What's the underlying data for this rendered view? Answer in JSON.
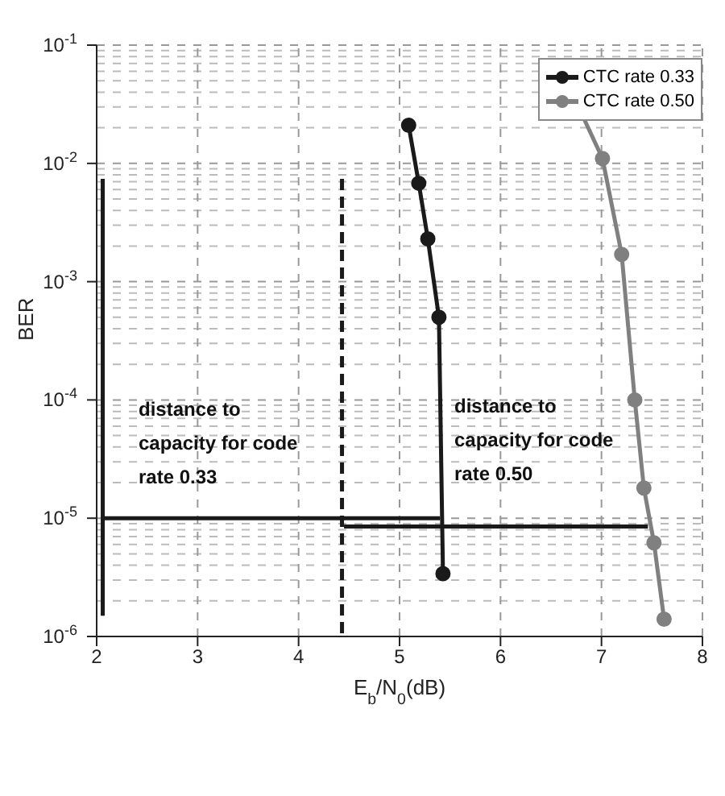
{
  "chart_data": {
    "type": "line",
    "xlabel": "E$_{b}$/N$_{0}$(dB)",
    "ylabel": "BER",
    "log": "y",
    "grid": true,
    "legend": "top right",
    "marker": "circle",
    "line_style": "solid",
    "xlim": [
      2,
      8
    ],
    "xticks": [
      2,
      3,
      4,
      5,
      6,
      7,
      8
    ],
    "ylim": [
      1e-06,
      0.1
    ],
    "yticks": [
      {
        "value": 0.1,
        "label": "10$^{-1}$"
      },
      {
        "value": 0.01,
        "label": "10$^{-2}$"
      },
      {
        "value": 0.001,
        "label": "10$^{-3}$"
      },
      {
        "value": 0.0001,
        "label": "10$^{-4}$"
      },
      {
        "value": 1e-05,
        "label": "10$^{-5}$"
      },
      {
        "value": 1e-06,
        "label": "10$^{-6}$"
      }
    ],
    "series": [
      {
        "name": "CTC rate 0.33",
        "color": "#1a1a1a",
        "x": [
          5.09,
          5.19,
          5.28,
          5.39,
          5.43
        ],
        "values": [
          0.021,
          0.0068,
          0.0023,
          0.0005,
          3.4e-06
        ]
      },
      {
        "name": "CTC rate 0.50",
        "color": "#808080",
        "x": [
          6.75,
          7.01,
          7.2,
          7.33,
          7.42,
          7.52,
          7.62
        ],
        "values": [
          0.033,
          0.011,
          0.0017,
          0.0001,
          1.8e-05,
          6.2e-06,
          1.4e-06
        ]
      },
      {
        "type": "line",
        "color": "#1a1a1a",
        "marker": "none",
        "x": [
          2.06,
          2.06
        ],
        "values": [
          0.0074,
          1.5e-06
        ]
      },
      {
        "type": "line",
        "color": "#1a1a1a",
        "marker": "none",
        "x": [
          2.06,
          5.4
        ],
        "values": [
          1e-05,
          1e-05
        ]
      },
      {
        "type": "line",
        "color": "#1a1a1a",
        "marker": "none",
        "line_style": "dashed",
        "x": [
          4.43,
          4.43
        ],
        "values": [
          0.0074,
          1e-06
        ]
      },
      {
        "type": "line",
        "color": "#1a1a1a",
        "marker": "none",
        "x": [
          4.45,
          7.46
        ],
        "values": [
          8.5e-06,
          8.5e-06
        ]
      }
    ],
    "annotations": [
      "distance to capacity for code rate 0.33",
      "distance to capacity for code rate 0.50"
    ]
  }
}
